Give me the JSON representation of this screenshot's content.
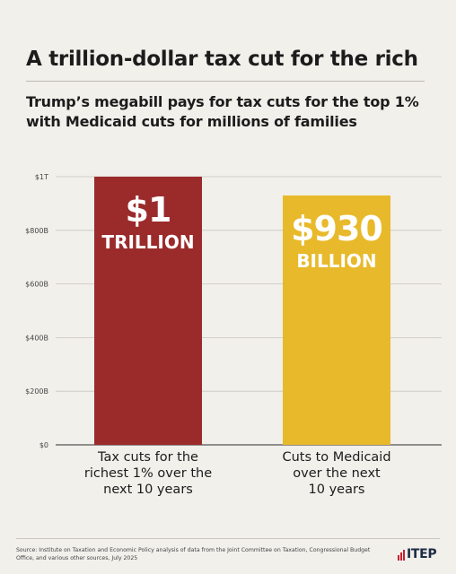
{
  "title": "A trillion-dollar tax cut for the rich",
  "subtitle": "Trump’s megabill pays for tax cuts for the top 1% with Medicaid cuts for millions of families",
  "source": "Source: Institute on Taxation and Economic Policy analysis of data from the Joint Committee on Taxation, Congressional Budget Office, and various other sources, July 2025",
  "logo": {
    "text": "ITEP"
  },
  "colors": {
    "background": "#f2f0eb",
    "tax_cut_bar": "#9b2b2b",
    "medicaid_bar": "#e8b92a",
    "logo_red": "#c8202f",
    "logo_navy": "#1c2c44"
  },
  "chart_data": {
    "type": "bar",
    "categories": [
      [
        "Tax cuts for the",
        "richest 1% over the",
        "next 10 years"
      ],
      [
        "Cuts to Medicaid",
        "over the next",
        "10 years"
      ]
    ],
    "values": [
      1000,
      930
    ],
    "value_unit": "billions of dollars",
    "data_labels": [
      {
        "amount": "$1",
        "unit": "TRILLION"
      },
      {
        "amount": "$930",
        "unit": "BILLION"
      }
    ],
    "ylim": [
      0,
      1000
    ],
    "yticks": [
      0,
      200,
      400,
      600,
      800,
      1000
    ],
    "ytick_labels": [
      "$0",
      "$200B",
      "$400B",
      "$600B",
      "$800B",
      "$1T"
    ],
    "grid": true,
    "legend": "none"
  }
}
